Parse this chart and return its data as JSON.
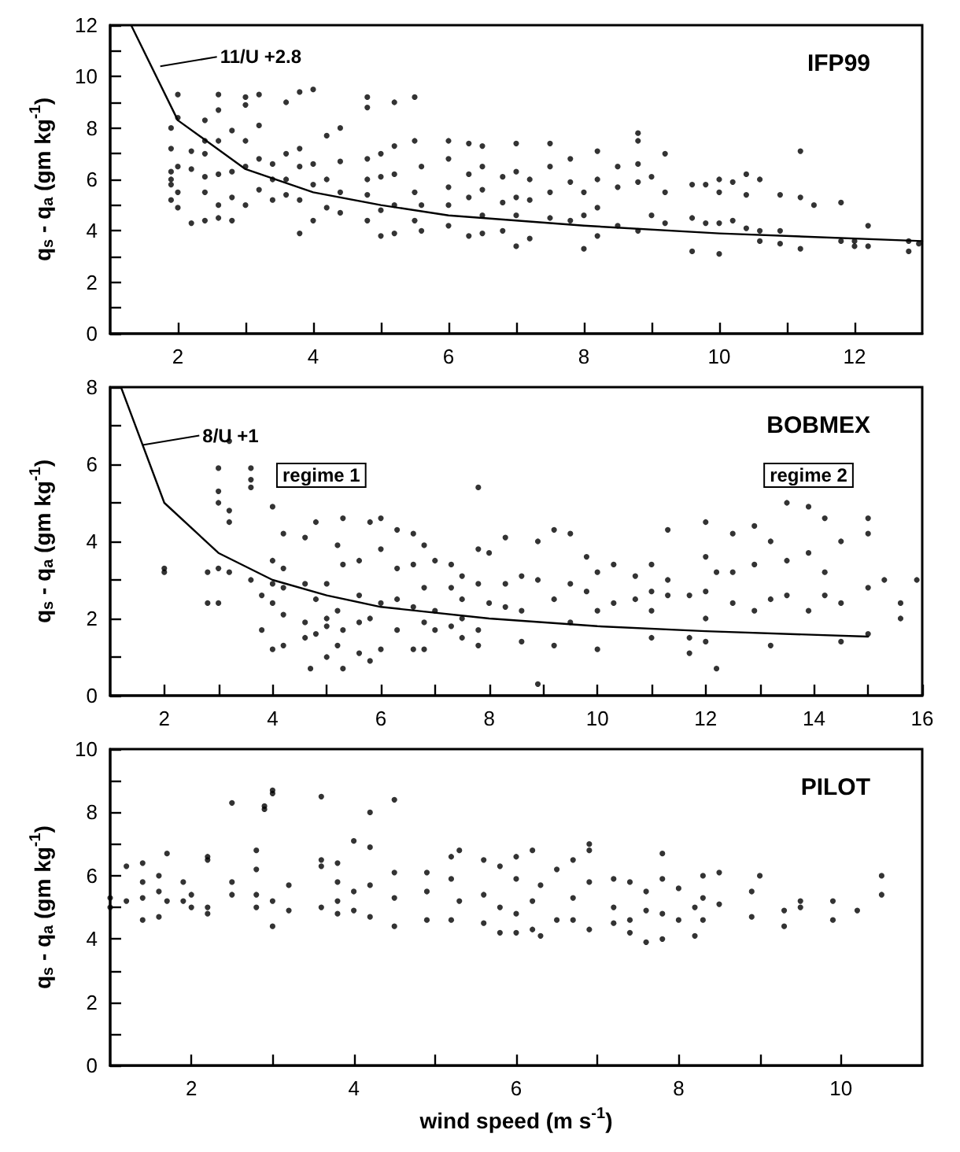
{
  "chart_data": [
    {
      "type": "scatter",
      "title": "IFP99",
      "ylabel": "q$_{s}$ - q$_{a}$ (gm kg$^{-1}$)",
      "marker": "circle",
      "line_style": "solid",
      "xlim": [
        1,
        13
      ],
      "xticks": [
        2,
        {
          "value": 3,
          "label": null
        },
        4,
        {
          "value": 5,
          "label": null
        },
        6,
        {
          "value": 7,
          "label": null
        },
        8,
        {
          "value": 9,
          "label": null
        },
        10,
        {
          "value": 11,
          "label": null
        },
        12
      ],
      "ylim": [
        0,
        12
      ],
      "yticks": [
        0,
        {
          "value": 1,
          "label": null
        },
        2,
        {
          "value": 3,
          "label": null
        },
        4,
        {
          "value": 5,
          "label": null
        },
        6,
        {
          "value": 7,
          "label": null
        },
        8,
        {
          "value": 9,
          "label": null
        },
        10,
        {
          "value": 11,
          "label": null
        },
        12
      ],
      "annotations": [
        {
          "text": "11/U +2.8",
          "x": 1.74,
          "y": 10.4
        }
      ],
      "series": [
        {
          "color": "#000000",
          "x": [
            1.9,
            1.9,
            1.9,
            1.9,
            1.9,
            1.9,
            2.0,
            2.0,
            2.0,
            2.0,
            2.0,
            2.2,
            2.2,
            2.2,
            2.4,
            2.4,
            2.4,
            2.4,
            2.4,
            2.4,
            2.6,
            2.6,
            2.6,
            2.6,
            2.6,
            2.6,
            2.8,
            2.8,
            2.8,
            2.8,
            3.0,
            3.0,
            3.0,
            3.0,
            3.0,
            3.2,
            3.2,
            3.2,
            3.2,
            3.4,
            3.4,
            3.4,
            3.6,
            3.6,
            3.6,
            3.6,
            3.8,
            3.8,
            3.8,
            3.8,
            3.8,
            4.0,
            4.0,
            4.0,
            4.0,
            4.2,
            4.2,
            4.2,
            4.4,
            4.4,
            4.4,
            4.4,
            4.8,
            4.8,
            4.8,
            4.8,
            4.8,
            4.8,
            5.0,
            5.0,
            5.0,
            5.0,
            5.2,
            5.2,
            5.2,
            5.2,
            5.2,
            5.5,
            5.5,
            5.5,
            5.5,
            5.6,
            5.6,
            5.6,
            6.0,
            6.0,
            6.0,
            6.0,
            6.0,
            6.3,
            6.3,
            6.3,
            6.3,
            6.5,
            6.5,
            6.5,
            6.5,
            6.5,
            6.8,
            6.8,
            6.8,
            7.0,
            7.0,
            7.0,
            7.0,
            7.0,
            7.2,
            7.2,
            7.2,
            7.5,
            7.5,
            7.5,
            7.5,
            7.8,
            7.8,
            7.8,
            8.0,
            8.0,
            8.0,
            8.2,
            8.2,
            8.2,
            8.2,
            8.5,
            8.5,
            8.5,
            8.8,
            8.8,
            8.8,
            8.8,
            8.8,
            9.0,
            9.0,
            9.2,
            9.2,
            9.2,
            9.6,
            9.6,
            9.6,
            9.8,
            9.8,
            10.0,
            10.0,
            10.0,
            10.0,
            10.2,
            10.2,
            10.4,
            10.4,
            10.4,
            10.6,
            10.6,
            10.6,
            10.9,
            10.9,
            10.9,
            11.2,
            11.2,
            11.2,
            11.4,
            11.8,
            11.8,
            12.0,
            12.0,
            12.2,
            12.2,
            12.8,
            12.8,
            12.95
          ],
          "values": [
            6.3,
            5.8,
            5.2,
            6.0,
            7.2,
            8.0,
            6.5,
            9.3,
            8.4,
            5.5,
            4.9,
            7.1,
            6.4,
            4.3,
            8.3,
            7.5,
            6.1,
            5.5,
            4.4,
            7.0,
            9.3,
            8.7,
            7.5,
            6.2,
            5.0,
            4.5,
            7.9,
            6.3,
            5.3,
            4.4,
            9.2,
            8.9,
            7.5,
            6.5,
            5.0,
            9.3,
            8.1,
            6.8,
            5.6,
            6.0,
            5.2,
            6.6,
            9.0,
            7.0,
            6.0,
            5.4,
            9.4,
            7.2,
            6.5,
            5.2,
            3.9,
            9.5,
            6.6,
            5.8,
            4.4,
            7.7,
            6.0,
            4.9,
            8.0,
            6.7,
            5.5,
            4.7,
            9.2,
            8.8,
            6.8,
            6.0,
            5.4,
            4.4,
            7.0,
            6.1,
            4.8,
            3.8,
            9.0,
            7.3,
            6.2,
            5.0,
            3.9,
            9.2,
            7.5,
            5.5,
            4.4,
            6.5,
            5.0,
            4.0,
            7.5,
            6.8,
            5.7,
            5.0,
            4.2,
            7.4,
            6.2,
            5.3,
            3.8,
            7.3,
            6.5,
            5.6,
            4.6,
            3.9,
            6.1,
            5.1,
            4.0,
            7.4,
            6.3,
            5.3,
            4.6,
            3.4,
            6.0,
            5.2,
            3.7,
            7.4,
            6.5,
            5.5,
            4.5,
            6.8,
            5.9,
            4.4,
            5.5,
            4.6,
            3.3,
            7.1,
            6.0,
            4.9,
            3.8,
            6.5,
            5.7,
            4.2,
            7.8,
            7.5,
            6.6,
            5.9,
            4.0,
            6.1,
            4.6,
            7.0,
            5.5,
            4.3,
            5.8,
            4.5,
            3.2,
            5.8,
            4.3,
            6.0,
            5.5,
            4.3,
            3.1,
            5.9,
            4.4,
            6.2,
            5.4,
            4.1,
            6.0,
            4.0,
            3.6,
            5.4,
            4.0,
            3.5,
            7.1,
            5.3,
            3.3,
            5.0,
            5.1,
            3.6,
            3.6,
            3.4,
            4.2,
            3.4,
            3.6,
            3.2,
            3.5
          ]
        },
        {
          "type": "line",
          "color": "#000000",
          "marker": "none",
          "x": [
            1.31,
            2,
            3,
            4,
            5,
            6,
            8,
            10,
            13
          ],
          "values": [
            12,
            8.3,
            6.4,
            5.5,
            5.0,
            4.6,
            4.2,
            3.9,
            3.6
          ]
        }
      ]
    },
    {
      "type": "scatter",
      "title": "BOBMEX",
      "ylabel": "q$_{s}$ - q$_{a}$ (gm kg$^{-1}$)",
      "marker": "circle",
      "line_style": "solid",
      "xlim": [
        1,
        16
      ],
      "xticks": [
        2,
        {
          "value": 3,
          "label": null
        },
        4,
        {
          "value": 5,
          "label": null
        },
        6,
        {
          "value": 7,
          "label": null
        },
        8,
        {
          "value": 9,
          "label": null
        },
        10,
        {
          "value": 11,
          "label": null
        },
        12,
        {
          "value": 13,
          "label": null
        },
        14,
        {
          "value": 15,
          "label": null
        },
        16
      ],
      "ylim": [
        0,
        8
      ],
      "yticks": [
        0,
        {
          "value": 1,
          "label": null
        },
        2,
        {
          "value": 3,
          "label": null
        },
        4,
        {
          "value": 5,
          "label": null
        },
        6,
        {
          "value": 7,
          "label": null
        },
        8
      ],
      "annotations": [
        {
          "text": "8/U +1",
          "x": 1.6,
          "y": 6.5
        },
        "regime 1",
        "regime 2"
      ],
      "series": [
        {
          "color": "#000000",
          "x": [
            2.0,
            2.0,
            2.8,
            2.8,
            3.0,
            3.0,
            3.0,
            3.0,
            3.0,
            3.2,
            3.2,
            3.2,
            3.2,
            3.6,
            3.6,
            3.6,
            3.6,
            3.8,
            3.8,
            4.0,
            4.0,
            4.0,
            4.0,
            4.0,
            4.2,
            4.2,
            4.2,
            4.2,
            4.2,
            4.6,
            4.6,
            4.6,
            4.6,
            4.7,
            4.8,
            4.8,
            4.8,
            5.0,
            5.0,
            5.0,
            5.0,
            5.2,
            5.2,
            5.2,
            5.3,
            5.3,
            5.3,
            5.3,
            5.6,
            5.6,
            5.6,
            5.6,
            5.8,
            5.8,
            5.8,
            6.0,
            6.0,
            6.0,
            6.0,
            6.3,
            6.3,
            6.3,
            6.3,
            6.6,
            6.6,
            6.6,
            6.6,
            6.8,
            6.8,
            6.8,
            6.8,
            7.0,
            7.0,
            7.0,
            7.3,
            7.3,
            7.3,
            7.5,
            7.5,
            7.5,
            7.5,
            7.8,
            7.8,
            7.8,
            7.8,
            7.8,
            8.0,
            8.0,
            8.3,
            8.3,
            8.3,
            8.6,
            8.6,
            8.6,
            8.9,
            8.9,
            8.9,
            9.2,
            9.2,
            9.2,
            9.5,
            9.5,
            9.5,
            9.8,
            9.8,
            10.0,
            10.0,
            10.0,
            10.3,
            10.3,
            10.7,
            10.7,
            11.0,
            11.0,
            11.0,
            11.0,
            11.3,
            11.3,
            11.3,
            11.7,
            11.7,
            11.7,
            12.0,
            12.0,
            12.0,
            12.0,
            12.0,
            12.2,
            12.2,
            12.5,
            12.5,
            12.5,
            12.9,
            12.9,
            12.9,
            13.2,
            13.2,
            13.2,
            13.5,
            13.5,
            13.5,
            13.9,
            13.9,
            13.9,
            14.2,
            14.2,
            14.2,
            14.5,
            14.5,
            14.5,
            15.0,
            15.0,
            15.0,
            15.0,
            15.3,
            15.6,
            15.6,
            15.9
          ],
          "values": [
            3.3,
            3.2,
            3.2,
            2.4,
            5.9,
            5.3,
            5.0,
            3.3,
            2.4,
            4.8,
            6.6,
            4.5,
            3.2,
            5.9,
            5.6,
            5.4,
            3.0,
            2.6,
            1.7,
            4.9,
            3.5,
            2.9,
            2.4,
            1.2,
            4.2,
            3.3,
            2.8,
            2.1,
            1.3,
            4.1,
            2.9,
            1.9,
            1.5,
            0.7,
            4.5,
            2.5,
            1.6,
            2.9,
            1.8,
            1.0,
            2.0,
            3.9,
            2.2,
            1.3,
            4.6,
            3.4,
            1.7,
            0.7,
            3.5,
            2.6,
            1.9,
            1.1,
            4.5,
            2.0,
            0.9,
            4.6,
            3.8,
            2.4,
            1.2,
            4.3,
            3.3,
            2.5,
            1.7,
            4.2,
            3.4,
            2.3,
            1.2,
            3.9,
            2.8,
            1.9,
            1.2,
            3.5,
            2.2,
            1.7,
            3.4,
            2.8,
            1.8,
            3.1,
            2.5,
            2.0,
            1.5,
            5.4,
            3.8,
            2.9,
            1.7,
            1.3,
            3.7,
            2.4,
            4.1,
            2.9,
            2.3,
            3.1,
            2.2,
            1.4,
            3.0,
            0.3,
            4.0,
            4.3,
            2.5,
            1.3,
            4.2,
            2.9,
            1.9,
            3.6,
            2.7,
            3.2,
            2.2,
            1.2,
            3.4,
            2.4,
            3.1,
            2.5,
            3.4,
            2.7,
            2.2,
            1.5,
            4.3,
            3.0,
            2.6,
            2.6,
            1.5,
            1.1,
            4.5,
            3.6,
            2.7,
            2.0,
            1.4,
            3.2,
            0.7,
            4.2,
            3.2,
            2.4,
            4.4,
            3.4,
            2.2,
            4.0,
            2.5,
            1.3,
            5.0,
            3.5,
            2.6,
            4.9,
            3.7,
            2.2,
            4.6,
            3.2,
            2.6,
            4.0,
            2.4,
            1.4,
            4.6,
            4.2,
            2.8,
            1.6,
            3.0,
            2.4,
            2.0,
            3.0
          ]
        },
        {
          "type": "line",
          "color": "#000000",
          "marker": "none",
          "x": [
            1.2,
            2,
            3,
            4,
            5,
            6,
            8,
            10,
            12,
            15
          ],
          "values": [
            8,
            5,
            3.7,
            3.0,
            2.6,
            2.3,
            2.0,
            1.8,
            1.67,
            1.53
          ]
        }
      ]
    },
    {
      "type": "scatter",
      "title": "PILOT",
      "xlabel": "wind speed (m s$^{-1}$)",
      "ylabel": "q$_{s}$ - q$_{a}$ (gm kg$^{-1}$)",
      "marker": "circle",
      "xlim": [
        1,
        11
      ],
      "xticks": [
        2,
        {
          "value": 3,
          "label": null
        },
        4,
        {
          "value": 5,
          "label": null
        },
        6,
        {
          "value": 7,
          "label": null
        },
        8,
        {
          "value": 9,
          "label": null
        },
        10
      ],
      "ylim": [
        0,
        10
      ],
      "yticks": [
        0,
        {
          "value": 1,
          "label": null
        },
        2,
        {
          "value": 3,
          "label": null
        },
        4,
        {
          "value": 5,
          "label": null
        },
        6,
        {
          "value": 7,
          "label": null
        },
        8,
        {
          "value": 9,
          "label": null
        },
        10
      ],
      "series": [
        {
          "color": "#000000",
          "x": [
            1.0,
            1.0,
            1.2,
            1.2,
            1.4,
            1.4,
            1.4,
            1.4,
            1.6,
            1.6,
            1.6,
            1.7,
            1.7,
            1.9,
            1.9,
            2.0,
            2.0,
            2.2,
            2.2,
            2.2,
            2.2,
            2.5,
            2.5,
            2.5,
            2.8,
            2.8,
            2.8,
            2.8,
            2.9,
            2.9,
            3.0,
            3.0,
            3.0,
            3.0,
            3.2,
            3.2,
            3.6,
            3.6,
            3.6,
            3.6,
            3.8,
            3.8,
            3.8,
            3.8,
            4.0,
            4.0,
            4.0,
            4.2,
            4.2,
            4.2,
            4.2,
            4.5,
            4.5,
            4.5,
            4.5,
            4.9,
            4.9,
            4.9,
            5.2,
            5.2,
            5.2,
            5.3,
            5.3,
            5.6,
            5.6,
            5.6,
            5.8,
            5.8,
            5.8,
            6.0,
            6.0,
            6.0,
            6.0,
            6.2,
            6.2,
            6.2,
            6.3,
            6.3,
            6.5,
            6.5,
            6.7,
            6.7,
            6.7,
            6.9,
            6.9,
            6.9,
            6.9,
            7.2,
            7.2,
            7.2,
            7.4,
            7.4,
            7.4,
            7.6,
            7.6,
            7.6,
            7.8,
            7.8,
            7.8,
            7.8,
            8.0,
            8.0,
            8.2,
            8.2,
            8.3,
            8.3,
            8.3,
            8.5,
            8.5,
            8.9,
            8.9,
            9.0,
            9.3,
            9.3,
            9.5,
            9.5,
            9.9,
            9.9,
            10.2,
            10.5,
            10.5
          ],
          "values": [
            5.3,
            5.0,
            6.3,
            5.2,
            6.4,
            5.8,
            5.3,
            4.6,
            6.0,
            5.5,
            4.7,
            6.7,
            5.2,
            5.8,
            5.2,
            5.4,
            5.0,
            6.5,
            6.6,
            5.0,
            4.8,
            8.3,
            5.8,
            5.4,
            6.8,
            6.2,
            5.4,
            5.0,
            8.1,
            8.2,
            8.7,
            8.6,
            5.2,
            4.4,
            5.7,
            4.9,
            8.5,
            6.5,
            6.3,
            5.0,
            6.4,
            5.8,
            5.2,
            4.8,
            7.1,
            5.5,
            4.9,
            8.0,
            6.9,
            5.7,
            4.7,
            8.4,
            6.1,
            5.3,
            4.4,
            6.1,
            5.5,
            4.6,
            6.6,
            5.9,
            4.6,
            6.8,
            5.2,
            6.5,
            5.4,
            4.5,
            6.3,
            5.0,
            4.2,
            6.6,
            5.9,
            4.8,
            4.2,
            6.8,
            5.2,
            4.3,
            5.7,
            4.1,
            6.2,
            4.6,
            6.5,
            5.3,
            4.6,
            7.0,
            6.8,
            5.8,
            4.3,
            5.9,
            5.0,
            4.5,
            5.8,
            4.6,
            4.2,
            5.5,
            4.9,
            3.9,
            6.7,
            5.9,
            4.8,
            4.0,
            5.6,
            4.6,
            5.0,
            4.1,
            6.0,
            5.3,
            4.6,
            6.1,
            5.1,
            5.5,
            4.7,
            6.0,
            4.9,
            4.4,
            5.2,
            5.0,
            5.2,
            4.6,
            4.9,
            6.0,
            5.4
          ]
        }
      ]
    }
  ]
}
